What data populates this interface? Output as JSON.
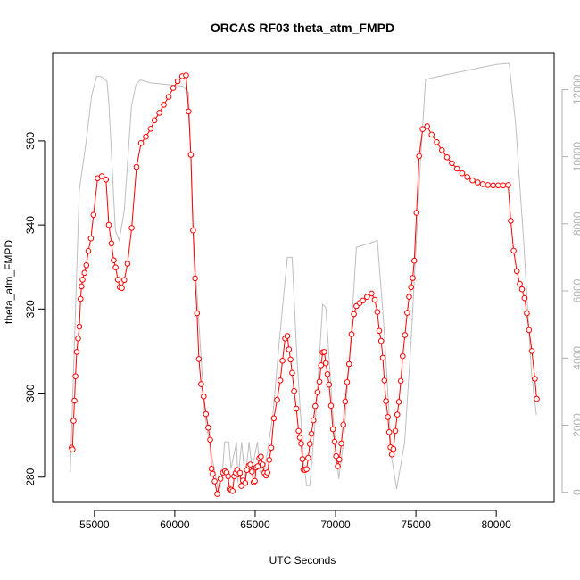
{
  "chart_data": {
    "type": "line",
    "title": "ORCAS RF03 theta_atm_FMPD",
    "xlabel": "UTC Seconds",
    "ylabel": "theta_atm_FMPD",
    "xlim": [
      52400,
      83600
    ],
    "ylim": [
      274,
      381
    ],
    "y2lim": [
      -300,
      13100
    ],
    "x_ticks": [
      55000,
      60000,
      65000,
      70000,
      75000,
      80000
    ],
    "y_ticks": [
      280,
      300,
      320,
      340,
      360
    ],
    "y2_ticks": [
      0,
      2000,
      4000,
      6000,
      8000,
      10000,
      12000
    ],
    "grid": false,
    "legend": "none",
    "colors": {
      "series": "#ff0000",
      "altitude": "#bebebe",
      "axes": "#000000",
      "right_axis": "#b0b0b0"
    },
    "series": [
      {
        "marker": "open-circle",
        "color": "#ff0000",
        "points": [
          [
            53580,
            287
          ],
          [
            53640,
            286.6
          ],
          [
            53700,
            293.4
          ],
          [
            53760,
            298.2
          ],
          [
            53820,
            304
          ],
          [
            53900,
            309.8
          ],
          [
            53980,
            313
          ],
          [
            54060,
            315.8
          ],
          [
            54140,
            322.4
          ],
          [
            54200,
            325.4
          ],
          [
            54260,
            327
          ],
          [
            54380,
            328.6
          ],
          [
            54500,
            330.4
          ],
          [
            54620,
            333.8
          ],
          [
            54780,
            336.8
          ],
          [
            54940,
            342.4
          ],
          [
            55200,
            351.1
          ],
          [
            55460,
            351.6
          ],
          [
            55720,
            350.8
          ],
          [
            55900,
            340
          ],
          [
            56060,
            335.6
          ],
          [
            56200,
            331.6
          ],
          [
            56320,
            329.9
          ],
          [
            56460,
            327
          ],
          [
            56580,
            325.2
          ],
          [
            56700,
            325
          ],
          [
            56860,
            326.9
          ],
          [
            57060,
            330.8
          ],
          [
            57320,
            339.3
          ],
          [
            57620,
            353.8
          ],
          [
            57900,
            359.5
          ],
          [
            58200,
            361
          ],
          [
            58500,
            362.9
          ],
          [
            58740,
            364.9
          ],
          [
            59040,
            366.7
          ],
          [
            59320,
            368.6
          ],
          [
            59620,
            370.5
          ],
          [
            59900,
            372.6
          ],
          [
            60180,
            374.2
          ],
          [
            60460,
            375.4
          ],
          [
            60700,
            375.6
          ],
          [
            60860,
            367
          ],
          [
            61000,
            356.7
          ],
          [
            61140,
            338.7
          ],
          [
            61260,
            327.3
          ],
          [
            61380,
            319
          ],
          [
            61500,
            308.1
          ],
          [
            61640,
            302.1
          ],
          [
            61800,
            299.2
          ],
          [
            61940,
            295
          ],
          [
            62080,
            291.8
          ],
          [
            62200,
            288.9
          ],
          [
            62280,
            282
          ],
          [
            62360,
            280.8
          ],
          [
            62480,
            279
          ],
          [
            62640,
            276
          ],
          [
            62840,
            279.6
          ],
          [
            63000,
            281.1
          ],
          [
            63120,
            281.4
          ],
          [
            63220,
            281.1
          ],
          [
            63320,
            280.2
          ],
          [
            63400,
            277.2
          ],
          [
            63500,
            277
          ],
          [
            63600,
            276.7
          ],
          [
            63700,
            280.2
          ],
          [
            63800,
            281
          ],
          [
            63880,
            281.7
          ],
          [
            63960,
            280.7
          ],
          [
            64060,
            281
          ],
          [
            64140,
            277.9
          ],
          [
            64240,
            279.2
          ],
          [
            64380,
            278.6
          ],
          [
            64480,
            281.7
          ],
          [
            64600,
            282.7
          ],
          [
            64700,
            283
          ],
          [
            64800,
            281.3
          ],
          [
            64900,
            278.8
          ],
          [
            64980,
            279.1
          ],
          [
            65060,
            282.3
          ],
          [
            65160,
            282.6
          ],
          [
            65260,
            284.5
          ],
          [
            65360,
            284.9
          ],
          [
            65460,
            283
          ],
          [
            65580,
            281
          ],
          [
            65680,
            280.4
          ],
          [
            65760,
            281.1
          ],
          [
            65880,
            284.1
          ],
          [
            66000,
            287
          ],
          [
            66160,
            294
          ],
          [
            66360,
            298.4
          ],
          [
            66560,
            303
          ],
          [
            66700,
            307.7
          ],
          [
            66860,
            313
          ],
          [
            67000,
            313.6
          ],
          [
            67100,
            310.4
          ],
          [
            67200,
            308
          ],
          [
            67300,
            304.8
          ],
          [
            67420,
            300.5
          ],
          [
            67560,
            296.3
          ],
          [
            67700,
            291
          ],
          [
            67780,
            289.4
          ],
          [
            67860,
            288
          ],
          [
            67940,
            284.3
          ],
          [
            68000,
            281.8
          ],
          [
            68100,
            281.7
          ],
          [
            68200,
            281.9
          ],
          [
            68300,
            284.6
          ],
          [
            68400,
            287.9
          ],
          [
            68500,
            290.3
          ],
          [
            68620,
            293.5
          ],
          [
            68740,
            296.9
          ],
          [
            68880,
            300.2
          ],
          [
            69000,
            302.7
          ],
          [
            69100,
            306.6
          ],
          [
            69200,
            309.7
          ],
          [
            69300,
            309.8
          ],
          [
            69400,
            307.1
          ],
          [
            69500,
            304.5
          ],
          [
            69600,
            302
          ],
          [
            69720,
            297
          ],
          [
            69840,
            291.4
          ],
          [
            69940,
            288.4
          ],
          [
            70040,
            285
          ],
          [
            70140,
            282.6
          ],
          [
            70240,
            284.2
          ],
          [
            70360,
            288
          ],
          [
            70480,
            292.5
          ],
          [
            70600,
            298
          ],
          [
            70720,
            302.6
          ],
          [
            70840,
            306.9
          ],
          [
            71000,
            314
          ],
          [
            71140,
            318.8
          ],
          [
            71300,
            320.7
          ],
          [
            71500,
            321.4
          ],
          [
            71700,
            322
          ],
          [
            71960,
            322.9
          ],
          [
            72240,
            323.7
          ],
          [
            72440,
            322.2
          ],
          [
            72600,
            319.3
          ],
          [
            72720,
            314.8
          ],
          [
            72840,
            312.4
          ],
          [
            72940,
            308.4
          ],
          [
            73040,
            303
          ],
          [
            73140,
            298.1
          ],
          [
            73260,
            294.3
          ],
          [
            73340,
            290.7
          ],
          [
            73420,
            287.1
          ],
          [
            73500,
            285.4
          ],
          [
            73600,
            286.7
          ],
          [
            73720,
            291
          ],
          [
            73840,
            294.9
          ],
          [
            73940,
            297.9
          ],
          [
            74060,
            302.9
          ],
          [
            74180,
            308.8
          ],
          [
            74320,
            313.8
          ],
          [
            74460,
            319.1
          ],
          [
            74580,
            322.9
          ],
          [
            74700,
            325.2
          ],
          [
            74800,
            327.4
          ],
          [
            74900,
            331.5
          ],
          [
            75040,
            342.9
          ],
          [
            75200,
            356.4
          ],
          [
            75420,
            362.8
          ],
          [
            75700,
            363.5
          ],
          [
            75980,
            361.5
          ],
          [
            76300,
            359.7
          ],
          [
            76620,
            357.8
          ],
          [
            76940,
            356.1
          ],
          [
            77240,
            354.7
          ],
          [
            77560,
            353.4
          ],
          [
            77880,
            352.3
          ],
          [
            78200,
            351.4
          ],
          [
            78520,
            350.6
          ],
          [
            78840,
            350.1
          ],
          [
            79160,
            349.7
          ],
          [
            79480,
            349.5
          ],
          [
            79800,
            349.4
          ],
          [
            80120,
            349.4
          ],
          [
            80440,
            349.4
          ],
          [
            80740,
            349.5
          ],
          [
            80900,
            341
          ],
          [
            81080,
            333.9
          ],
          [
            81280,
            329
          ],
          [
            81460,
            326
          ],
          [
            81600,
            324.7
          ],
          [
            81760,
            322.6
          ],
          [
            81900,
            319
          ],
          [
            82040,
            315
          ],
          [
            82220,
            310
          ],
          [
            82400,
            303.4
          ],
          [
            82520,
            298.6
          ]
        ]
      },
      {
        "axis": "right",
        "color": "#bebebe",
        "points": [
          [
            53500,
            600
          ],
          [
            54060,
            9000
          ],
          [
            54500,
            10500
          ],
          [
            54820,
            11800
          ],
          [
            55140,
            12400
          ],
          [
            55460,
            12380
          ],
          [
            55780,
            12240
          ],
          [
            55900,
            11600
          ],
          [
            56300,
            7800
          ],
          [
            56540,
            7500
          ],
          [
            56860,
            8400
          ],
          [
            57300,
            11500
          ],
          [
            57580,
            12140
          ],
          [
            57860,
            12290
          ],
          [
            58500,
            12200
          ],
          [
            59500,
            12150
          ],
          [
            60500,
            12100
          ],
          [
            60860,
            11900
          ],
          [
            61140,
            7800
          ],
          [
            61860,
            2300
          ],
          [
            62300,
            1100
          ],
          [
            62760,
            -100
          ],
          [
            63000,
            800
          ],
          [
            63100,
            1500
          ],
          [
            63360,
            1500
          ],
          [
            63500,
            700
          ],
          [
            63840,
            1500
          ],
          [
            63920,
            300
          ],
          [
            64160,
            1500
          ],
          [
            64380,
            400
          ],
          [
            64620,
            1500
          ],
          [
            64800,
            700
          ],
          [
            65140,
            1500
          ],
          [
            65300,
            600
          ],
          [
            65600,
            700
          ],
          [
            66100,
            2300
          ],
          [
            66500,
            4500
          ],
          [
            67000,
            7000
          ],
          [
            67300,
            7000
          ],
          [
            67600,
            4000
          ],
          [
            68000,
            1000
          ],
          [
            68200,
            200
          ],
          [
            68400,
            200
          ],
          [
            68800,
            2500
          ],
          [
            69200,
            5600
          ],
          [
            69400,
            5500
          ],
          [
            69800,
            2500
          ],
          [
            70200,
            400
          ],
          [
            70500,
            1500
          ],
          [
            70900,
            4200
          ],
          [
            71300,
            7300
          ],
          [
            72000,
            7400
          ],
          [
            72600,
            7500
          ],
          [
            73000,
            5000
          ],
          [
            73500,
            1000
          ],
          [
            73800,
            100
          ],
          [
            74300,
            1500
          ],
          [
            74700,
            4500
          ],
          [
            75300,
            10000
          ],
          [
            75600,
            12300
          ],
          [
            76000,
            12350
          ],
          [
            77000,
            12450
          ],
          [
            78000,
            12550
          ],
          [
            79000,
            12650
          ],
          [
            80000,
            12750
          ],
          [
            80800,
            12780
          ],
          [
            81200,
            11000
          ],
          [
            81700,
            7500
          ],
          [
            82200,
            3500
          ],
          [
            82500,
            2300
          ]
        ]
      }
    ]
  }
}
